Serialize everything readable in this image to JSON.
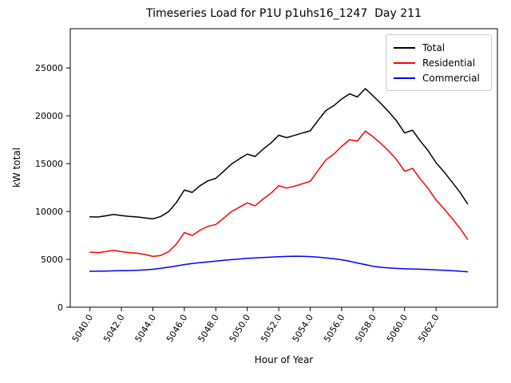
{
  "chart_data": {
    "type": "line",
    "title": "Timeseries Load for P1U p1uhs16_1247  Day 211",
    "xlabel": "Hour of Year",
    "ylabel": "kW total",
    "grid": false,
    "legend_position": "upper right",
    "xlim": [
      5038.75,
      5065.9
    ],
    "ylim": [
      0,
      29100
    ],
    "xticks": {
      "values": [
        5040,
        5042,
        5044,
        5046,
        5048,
        5050,
        5052,
        5054,
        5056,
        5058,
        5060,
        5062
      ],
      "labels": [
        "5040.0",
        "5042.0",
        "5044.0",
        "5046.0",
        "5048.0",
        "5050.0",
        "5052.0",
        "5054.0",
        "5056.0",
        "5058.0",
        "5060.0",
        "5062.0"
      ]
    },
    "yticks": {
      "values": [
        0,
        5000,
        10000,
        15000,
        20000,
        25000
      ],
      "labels": [
        "0",
        "5000",
        "10000",
        "15000",
        "20000",
        "25000"
      ]
    },
    "x": [
      5040,
      5040.5,
      5041,
      5041.5,
      5042,
      5042.5,
      5043,
      5043.5,
      5044,
      5044.5,
      5045,
      5045.5,
      5046,
      5046.5,
      5047,
      5047.5,
      5048,
      5048.5,
      5049,
      5049.5,
      5050,
      5050.5,
      5051,
      5051.5,
      5052,
      5052.5,
      5053,
      5053.5,
      5054,
      5054.5,
      5055,
      5055.5,
      5056,
      5056.5,
      5057,
      5057.5,
      5058,
      5058.5,
      5059,
      5059.5,
      5060,
      5060.5,
      5061,
      5061.5,
      5062,
      5062.5,
      5063,
      5063.5,
      5064
    ],
    "series": [
      {
        "name": "Total",
        "color": "#000000",
        "values": [
          9450,
          9420,
          9550,
          9700,
          9580,
          9480,
          9430,
          9330,
          9230,
          9480,
          9980,
          10950,
          12250,
          12000,
          12700,
          13200,
          13470,
          14200,
          14970,
          15500,
          16000,
          15750,
          16500,
          17150,
          17970,
          17720,
          17950,
          18200,
          18430,
          19530,
          20550,
          21060,
          21750,
          22300,
          21970,
          22850,
          22080,
          21270,
          20400,
          19450,
          18210,
          18490,
          17370,
          16340,
          15100,
          14160,
          13110,
          12060,
          10800
        ]
      },
      {
        "name": "Residential",
        "color": "#ff0000",
        "values": [
          5750,
          5700,
          5800,
          5950,
          5800,
          5700,
          5650,
          5500,
          5300,
          5400,
          5800,
          6600,
          7800,
          7500,
          8050,
          8450,
          8650,
          9300,
          10000,
          10450,
          10900,
          10600,
          11300,
          11900,
          12700,
          12450,
          12650,
          12900,
          13150,
          14300,
          15400,
          16000,
          16800,
          17500,
          17350,
          18400,
          17800,
          17100,
          16300,
          15400,
          14200,
          14500,
          13400,
          12400,
          11200,
          10300,
          9300,
          8300,
          7100
        ]
      },
      {
        "name": "Commercial",
        "color": "#0000ff",
        "values": [
          3750,
          3760,
          3780,
          3800,
          3810,
          3830,
          3860,
          3900,
          3960,
          4060,
          4180,
          4320,
          4450,
          4560,
          4660,
          4740,
          4820,
          4900,
          4970,
          5040,
          5100,
          5150,
          5190,
          5230,
          5270,
          5300,
          5330,
          5320,
          5290,
          5230,
          5150,
          5060,
          4950,
          4800,
          4620,
          4450,
          4280,
          4170,
          4100,
          4050,
          4010,
          3990,
          3970,
          3940,
          3900,
          3860,
          3810,
          3760,
          3700
        ]
      }
    ]
  }
}
